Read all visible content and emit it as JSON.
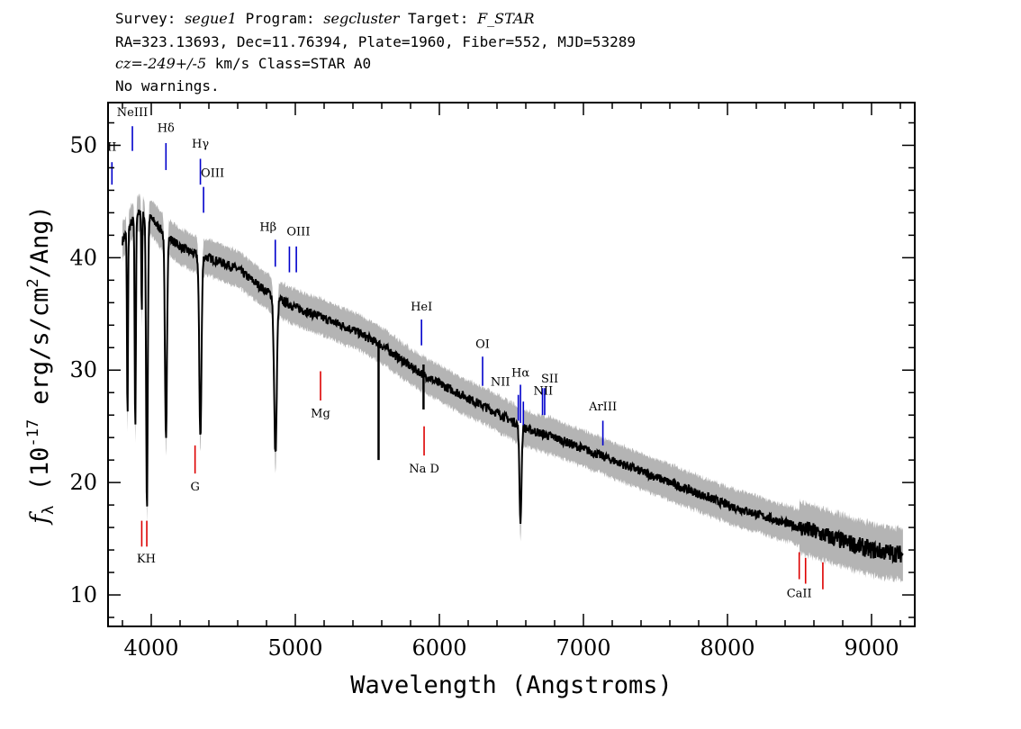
{
  "header": {
    "line1": {
      "survey_label": "Survey:",
      "survey": "segue1",
      "program_label": "Program:",
      "program": "segcluster",
      "target_label": "Target:",
      "target": "F_STAR"
    },
    "line2": "RA=323.13693, Dec=11.76394, Plate=1960, Fiber=552, MJD=53289",
    "line3": {
      "cz_label": "cz=",
      "cz": "-249+/-5",
      "rest": " km/s Class=STAR A0"
    },
    "line4": "No warnings."
  },
  "chart_data": {
    "type": "line",
    "xlabel": "Wavelength (Angstroms)",
    "ylabel_sym": "f",
    "ylabel_sub": "λ",
    "ylabel_pre": "(10",
    "ylabel_exp": "-17",
    "ylabel_mid": " erg/s/cm",
    "ylabel_exp2": "2",
    "ylabel_post": "/Ang)",
    "xlim": [
      3700,
      9300
    ],
    "ylim": [
      7.2,
      53.8
    ],
    "x_ticks": [
      4000,
      5000,
      6000,
      7000,
      8000,
      9000
    ],
    "x_tick_labels": [
      "4000",
      "5000",
      "6000",
      "7000",
      "8000",
      "9000"
    ],
    "y_ticks": [
      10,
      20,
      30,
      40,
      50
    ],
    "y_tick_labels": [
      "10",
      "20",
      "30",
      "40",
      "50"
    ],
    "continuum": [
      [
        3800,
        41.5
      ],
      [
        3900,
        44
      ],
      [
        4000,
        43.5
      ],
      [
        4100,
        42
      ],
      [
        4200,
        41
      ],
      [
        4300,
        40.3
      ],
      [
        4400,
        40
      ],
      [
        4500,
        39.5
      ],
      [
        4600,
        39
      ],
      [
        4700,
        38
      ],
      [
        4800,
        37
      ],
      [
        4900,
        36.2
      ],
      [
        5000,
        35.6
      ],
      [
        5200,
        34.6
      ],
      [
        5400,
        33.6
      ],
      [
        5600,
        32.2
      ],
      [
        5800,
        30.3
      ],
      [
        6000,
        28.8
      ],
      [
        6200,
        27.5
      ],
      [
        6400,
        26.2
      ],
      [
        6600,
        24.8
      ],
      [
        6800,
        24
      ],
      [
        7000,
        23
      ],
      [
        7200,
        22
      ],
      [
        7400,
        21
      ],
      [
        7600,
        20
      ],
      [
        7800,
        19
      ],
      [
        8000,
        18
      ],
      [
        8200,
        17.2
      ],
      [
        8400,
        16.4
      ],
      [
        8600,
        15.6
      ],
      [
        8800,
        14.8
      ],
      [
        9000,
        14
      ],
      [
        9220,
        13.6
      ]
    ],
    "absorption": [
      {
        "wavelength": 3835,
        "depth": 17,
        "width": 5
      },
      {
        "wavelength": 3889,
        "depth": 19,
        "width": 6
      },
      {
        "wavelength": 3934,
        "depth": 9,
        "width": 4
      },
      {
        "wavelength": 3970,
        "depth": 26,
        "width": 8
      },
      {
        "wavelength": 4102,
        "depth": 18,
        "width": 10
      },
      {
        "wavelength": 4341,
        "depth": 16,
        "width": 11
      },
      {
        "wavelength": 4862,
        "depth": 14,
        "width": 13
      },
      {
        "wavelength": 6563,
        "depth": 8.5,
        "width": 10
      }
    ],
    "spikes": [
      {
        "wavelength": 5578,
        "low": 22,
        "high": 32.5
      },
      {
        "wavelength": 5890,
        "low": 26.5,
        "high": 30.5
      }
    ],
    "error_band": {
      "color": "#b4b4b4",
      "half_width": 1.4
    },
    "series_color": "#000000",
    "emission_lines": [
      {
        "label": "NeIII",
        "wavelength": 3869,
        "y0": 49.5,
        "y1": 51.7,
        "label_y": 52.6,
        "dx": 0
      },
      {
        "label": "II",
        "wavelength": 3727,
        "y0": 46.5,
        "y1": 48.5,
        "label_y": 49.5,
        "dx": 0
      },
      {
        "label": "Hδ",
        "wavelength": 4102,
        "y0": 47.8,
        "y1": 50.2,
        "label_y": 51.2,
        "dx": 0
      },
      {
        "label": "Hγ",
        "wavelength": 4341,
        "y0": 46.5,
        "y1": 48.8,
        "label_y": 49.8,
        "dx": 0
      },
      {
        "label": "OIII",
        "wavelength": 4363,
        "y0": 44,
        "y1": 46.3,
        "label_y": 47.2,
        "dx": 10
      },
      {
        "label": "Hβ",
        "wavelength": 4861,
        "y0": 39.2,
        "y1": 41.6,
        "label_y": 42.4,
        "dx": -8
      },
      {
        "label": "OIII",
        "wavelength": 4959,
        "y0": 38.7,
        "y1": 41,
        "label_y": 42,
        "dx": 10
      },
      {
        "label": "",
        "wavelength": 5007,
        "y0": 38.7,
        "y1": 41,
        "label_y": 0,
        "dx": 0
      },
      {
        "label": "HeI",
        "wavelength": 5876,
        "y0": 32.2,
        "y1": 34.5,
        "label_y": 35.3,
        "dx": 0
      },
      {
        "label": "OI",
        "wavelength": 6300,
        "y0": 28.6,
        "y1": 31.2,
        "label_y": 32,
        "dx": 0
      },
      {
        "label": "NII",
        "wavelength": 6548,
        "y0": 25.5,
        "y1": 27.8,
        "label_y": 28.6,
        "dx": -20
      },
      {
        "label": "Hα",
        "wavelength": 6563,
        "y0": 25.3,
        "y1": 28.7,
        "label_y": 29.4,
        "dx": 0
      },
      {
        "label": "NII",
        "wavelength": 6583,
        "y0": 25.1,
        "y1": 27.2,
        "label_y": 27.8,
        "dx": 22
      },
      {
        "label": "SII",
        "wavelength": 6716,
        "y0": 26,
        "y1": 28.4,
        "label_y": 28.9,
        "dx": 8
      },
      {
        "label": "",
        "wavelength": 6731,
        "y0": 26,
        "y1": 28.4,
        "label_y": 0,
        "dx": 0
      },
      {
        "label": "ArIII",
        "wavelength": 7135,
        "y0": 23.3,
        "y1": 25.5,
        "label_y": 26.4,
        "dx": 0
      }
    ],
    "absorption_markers": [
      {
        "label": "KH",
        "wavelength": 3934,
        "y0": 14.3,
        "y1": 16.6,
        "label_y": 12.9,
        "dx": 5
      },
      {
        "label": "",
        "wavelength": 3969,
        "y0": 14.3,
        "y1": 16.6,
        "label_y": 0,
        "dx": 0
      },
      {
        "label": "G",
        "wavelength": 4304,
        "y0": 20.8,
        "y1": 23.3,
        "label_y": 19.3,
        "dx": 0
      },
      {
        "label": "Mg",
        "wavelength": 5175,
        "y0": 27.3,
        "y1": 29.9,
        "label_y": 25.8,
        "dx": 0
      },
      {
        "label": "Na D",
        "wavelength": 5894,
        "y0": 22.4,
        "y1": 25,
        "label_y": 20.9,
        "dx": 0
      },
      {
        "label": "CaII",
        "wavelength": 8498,
        "y0": 11.4,
        "y1": 13.8,
        "label_y": 9.8,
        "dx": 0
      },
      {
        "label": "",
        "wavelength": 8542,
        "y0": 11,
        "y1": 13.3,
        "label_y": 0,
        "dx": 0
      },
      {
        "label": "",
        "wavelength": 8662,
        "y0": 10.5,
        "y1": 12.9,
        "label_y": 0,
        "dx": 0
      }
    ],
    "emission_color": "#0000cc",
    "absorption_color": "#dd0000"
  }
}
